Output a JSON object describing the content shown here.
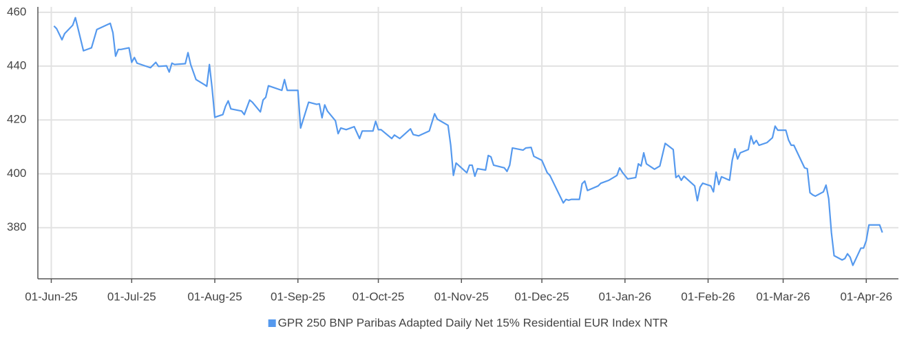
{
  "chart_data": {
    "type": "line",
    "x": [
      "2025-06-02",
      "2025-06-03",
      "2025-06-05",
      "2025-06-06",
      "2025-06-09",
      "2025-06-10",
      "2025-06-13",
      "2025-06-16",
      "2025-06-18",
      "2025-06-23",
      "2025-06-24",
      "2025-06-25",
      "2025-06-26",
      "2025-06-27",
      "2025-06-30",
      "2025-07-01",
      "2025-07-02",
      "2025-07-03",
      "2025-07-08",
      "2025-07-10",
      "2025-07-11",
      "2025-07-14",
      "2025-07-15",
      "2025-07-16",
      "2025-07-17",
      "2025-07-21",
      "2025-07-22",
      "2025-07-23",
      "2025-07-25",
      "2025-07-28",
      "2025-07-29",
      "2025-07-30",
      "2025-07-31",
      "2025-08-01",
      "2025-08-04",
      "2025-08-05",
      "2025-08-06",
      "2025-08-07",
      "2025-08-11",
      "2025-08-12",
      "2025-08-14",
      "2025-08-15",
      "2025-08-18",
      "2025-08-19",
      "2025-08-20",
      "2025-08-21",
      "2025-08-26",
      "2025-08-27",
      "2025-08-28",
      "2025-09-01",
      "2025-09-02",
      "2025-09-05",
      "2025-09-08",
      "2025-09-09",
      "2025-09-10",
      "2025-09-11",
      "2025-09-12",
      "2025-09-15",
      "2025-09-16",
      "2025-09-17",
      "2025-09-19",
      "2025-09-22",
      "2025-09-24",
      "2025-09-25",
      "2025-09-29",
      "2025-09-30",
      "2025-10-01",
      "2025-10-02",
      "2025-10-06",
      "2025-10-07",
      "2025-10-09",
      "2025-10-13",
      "2025-10-14",
      "2025-10-16",
      "2025-10-20",
      "2025-10-22",
      "2025-10-23",
      "2025-10-27",
      "2025-10-28",
      "2025-10-29",
      "2025-10-30",
      "2025-11-03",
      "2025-11-04",
      "2025-11-05",
      "2025-11-06",
      "2025-11-07",
      "2025-11-10",
      "2025-11-11",
      "2025-11-12",
      "2025-11-13",
      "2025-11-17",
      "2025-11-18",
      "2025-11-19",
      "2025-11-20",
      "2025-11-24",
      "2025-11-25",
      "2025-11-27",
      "2025-11-28",
      "2025-12-01",
      "2025-12-03",
      "2025-12-04",
      "2025-12-09",
      "2025-12-10",
      "2025-12-11",
      "2025-12-12",
      "2025-12-15",
      "2025-12-16",
      "2025-12-17",
      "2025-12-18",
      "2025-12-22",
      "2025-12-23",
      "2025-12-26",
      "2025-12-29",
      "2025-12-30",
      "2025-12-31",
      "2026-01-02",
      "2026-01-05",
      "2026-01-06",
      "2026-01-07",
      "2026-01-08",
      "2026-01-09",
      "2026-01-12",
      "2026-01-14",
      "2026-01-16",
      "2026-01-19",
      "2026-01-20",
      "2026-01-21",
      "2026-01-22",
      "2026-01-23",
      "2026-01-27",
      "2026-01-28",
      "2026-01-29",
      "2026-01-30",
      "2026-02-02",
      "2026-02-03",
      "2026-02-04",
      "2026-02-05",
      "2026-02-06",
      "2026-02-09",
      "2026-02-10",
      "2026-02-11",
      "2026-02-12",
      "2026-02-13",
      "2026-02-16",
      "2026-02-17",
      "2026-02-18",
      "2026-02-19",
      "2026-02-20",
      "2026-02-23",
      "2026-02-25",
      "2026-02-26",
      "2026-02-27",
      "2026-03-02",
      "2026-03-03",
      "2026-03-04",
      "2026-03-05",
      "2026-03-09",
      "2026-03-10",
      "2026-03-11",
      "2026-03-12",
      "2026-03-13",
      "2026-03-16",
      "2026-03-17",
      "2026-03-18",
      "2026-03-19",
      "2026-03-20",
      "2026-03-23",
      "2026-03-24",
      "2026-03-25",
      "2026-03-26",
      "2026-03-27",
      "2026-03-30",
      "2026-03-31",
      "2026-04-01",
      "2026-04-02",
      "2026-04-06",
      "2026-04-07"
    ],
    "series": [
      {
        "name": "GPR 250 BNP Paribas Adapted Daily Net 15% Residential EUR Index NTR",
        "color": "#5599ee",
        "values": [
          454.9,
          453.9,
          449.8,
          452.1,
          455.2,
          458.0,
          445.7,
          446.8,
          453.6,
          455.9,
          452.4,
          443.7,
          446.2,
          446.2,
          446.8,
          441.4,
          443.2,
          441.1,
          439.4,
          441.4,
          439.9,
          440.1,
          437.8,
          441.1,
          440.6,
          440.9,
          445.0,
          440.6,
          435.0,
          433.2,
          432.5,
          440.6,
          431.7,
          421.0,
          422.0,
          425.1,
          427.1,
          424.1,
          423.3,
          422.0,
          427.4,
          426.6,
          423.0,
          427.4,
          428.4,
          432.7,
          431.0,
          435.0,
          431.0,
          431.0,
          417.0,
          426.6,
          425.8,
          426.0,
          420.8,
          425.6,
          423.3,
          419.7,
          414.9,
          417.0,
          416.4,
          417.5,
          413.1,
          415.9,
          415.9,
          419.5,
          416.4,
          416.4,
          413.1,
          414.4,
          413.1,
          416.7,
          414.6,
          414.1,
          415.9,
          422.3,
          420.3,
          418.0,
          410.6,
          399.4,
          404.0,
          400.4,
          403.2,
          403.2,
          399.1,
          401.9,
          401.4,
          406.8,
          406.3,
          403.2,
          402.2,
          400.9,
          403.2,
          409.6,
          408.8,
          409.6,
          409.8,
          406.5,
          405.0,
          400.4,
          399.4,
          389.2,
          390.5,
          390.2,
          390.5,
          390.5,
          396.3,
          397.3,
          393.8,
          395.5,
          396.5,
          397.6,
          399.4,
          402.2,
          400.6,
          398.1,
          398.6,
          403.7,
          402.9,
          407.8,
          403.7,
          401.7,
          402.9,
          411.3,
          409.0,
          398.6,
          399.4,
          397.6,
          399.1,
          395.5,
          390.0,
          395.0,
          396.5,
          395.5,
          393.3,
          400.6,
          396.0,
          398.9,
          397.6,
          405.0,
          409.3,
          405.5,
          407.8,
          409.0,
          414.1,
          411.1,
          412.4,
          410.6,
          411.6,
          413.4,
          417.7,
          416.2,
          416.2,
          412.6,
          410.6,
          410.6,
          402.2,
          401.9,
          393.0,
          392.2,
          391.7,
          393.3,
          395.8,
          390.7,
          378.2,
          369.6,
          368.0,
          368.5,
          370.3,
          369.0,
          366.0,
          372.4,
          372.4,
          375.2,
          381.0,
          381.0,
          378.2
        ]
      }
    ],
    "xlim": [
      "2025-05-27",
      "2026-04-13"
    ],
    "xticks": [
      {
        "value": "2025-06-01",
        "label": "01-Jun-25"
      },
      {
        "value": "2025-07-01",
        "label": "01-Jul-25"
      },
      {
        "value": "2025-08-01",
        "label": "01-Aug-25"
      },
      {
        "value": "2025-09-01",
        "label": "01-Sep-25"
      },
      {
        "value": "2025-10-01",
        "label": "01-Oct-25"
      },
      {
        "value": "2025-11-01",
        "label": "01-Nov-25"
      },
      {
        "value": "2025-12-01",
        "label": "01-Dec-25"
      },
      {
        "value": "2026-01-01",
        "label": "01-Jan-26"
      },
      {
        "value": "2026-02-01",
        "label": "01-Feb-26"
      },
      {
        "value": "2026-03-01",
        "label": "01-Mar-26"
      },
      {
        "value": "2026-04-01",
        "label": "01-Apr-26"
      }
    ],
    "ylim": [
      361,
      462
    ],
    "yticks": [
      380,
      400,
      420,
      440,
      460
    ],
    "grid": true,
    "legend": "bottom"
  }
}
